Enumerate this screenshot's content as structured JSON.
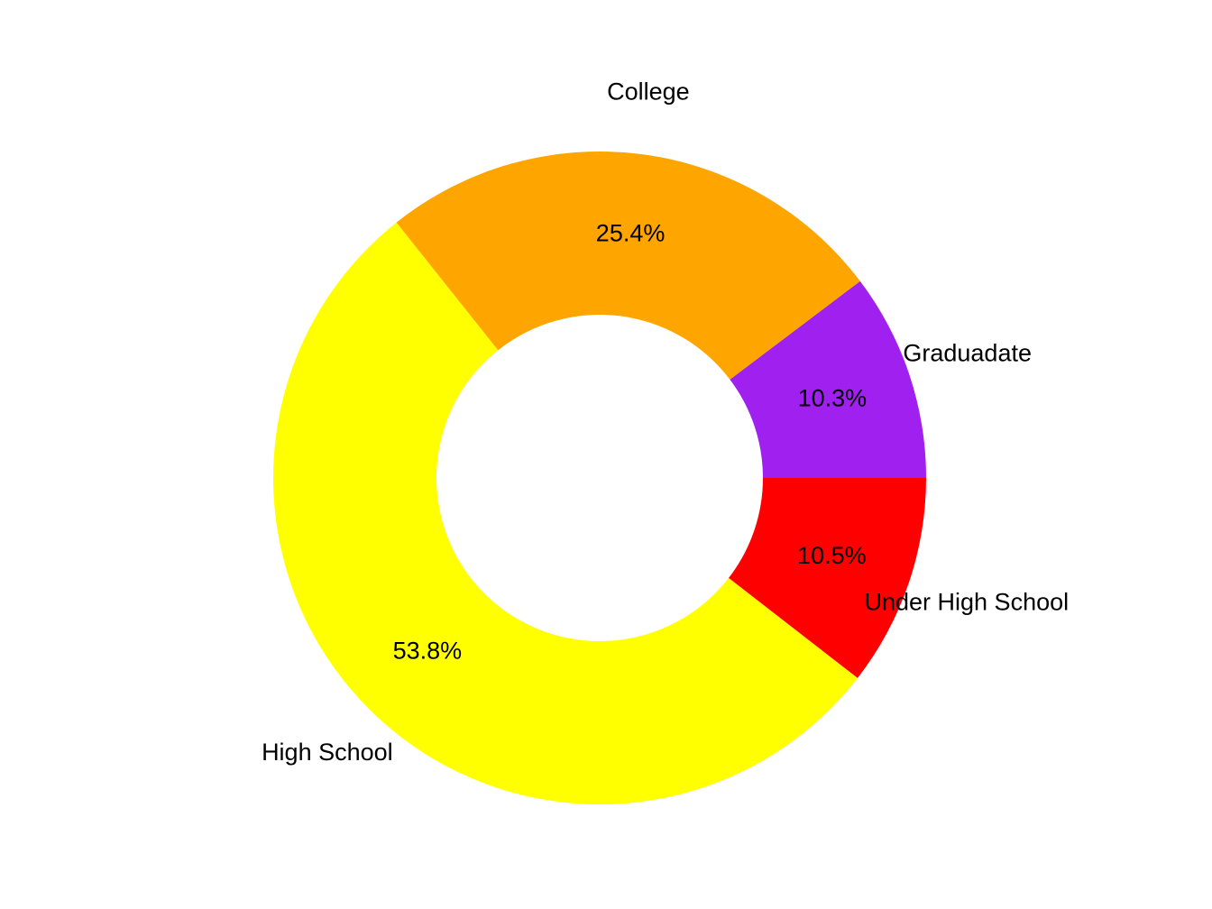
{
  "chart_data": {
    "type": "pie",
    "donut": true,
    "title": "",
    "start_angle_deg": 0,
    "direction": "counterclockwise",
    "slices": [
      {
        "label": "Graduadate",
        "value": 10.3,
        "value_label": "10.3%",
        "color": "#A020F0"
      },
      {
        "label": "College",
        "value": 25.4,
        "value_label": "25.4%",
        "color": "#FFA500"
      },
      {
        "label": "High School",
        "value": 53.8,
        "value_label": "53.8%",
        "color": "#FFFF00"
      },
      {
        "label": "Under High School",
        "value": 10.5,
        "value_label": "10.5%",
        "color": "#FF0000"
      }
    ]
  }
}
